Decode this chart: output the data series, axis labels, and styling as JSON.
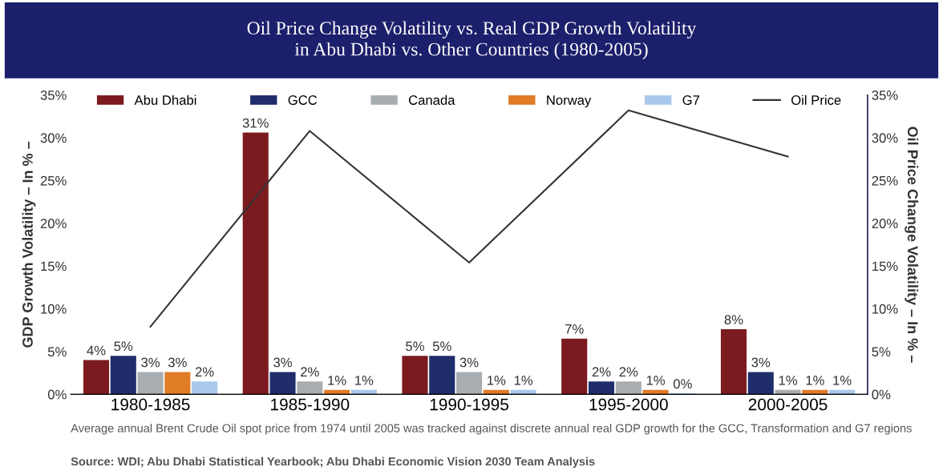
{
  "chart_data": {
    "type": "bar",
    "title": "Oil Price Change Volatility vs. Real GDP Growth Volatility\nin Abu Dhabi vs. Other Countries (1980-2005)",
    "ylabel": "GDP Growth Volatility – In % –",
    "y2label": "Oil Price Change Volatility – In % –",
    "categories": [
      "1980-1985",
      "1985-1990",
      "1990-1995",
      "1995-2000",
      "2000-2005"
    ],
    "series": [
      {
        "name": "Abu Dhabi",
        "color": "#7b1a1f",
        "values": [
          4,
          30.6,
          4.5,
          6.5,
          7.6
        ],
        "value_labels": [
          "4%",
          "31%",
          "5%",
          "7%",
          "8%"
        ]
      },
      {
        "name": "GCC",
        "color": "#1f2d6b",
        "values": [
          4.5,
          2.6,
          4.5,
          1.5,
          2.6
        ],
        "value_labels": [
          "5%",
          "3%",
          "5%",
          "2%",
          "3%"
        ]
      },
      {
        "name": "Canada",
        "color": "#a7adb1",
        "values": [
          2.6,
          1.5,
          2.6,
          1.5,
          0.5
        ],
        "value_labels": [
          "3%",
          "2%",
          "3%",
          "2%",
          "1%"
        ]
      },
      {
        "name": "Norway",
        "color": "#e07b26",
        "values": [
          2.6,
          0.5,
          0.5,
          0.5,
          0.5
        ],
        "value_labels": [
          "3%",
          "1%",
          "1%",
          "1%",
          "1%"
        ]
      },
      {
        "name": "G7",
        "color": "#a9c8ec",
        "values": [
          1.5,
          0.5,
          0.5,
          0.1,
          0.5
        ],
        "value_labels": [
          "2%",
          "1%",
          "1%",
          "0%",
          "1%"
        ]
      },
      {
        "name": "Oil Price",
        "type": "line",
        "axis": "y2",
        "color": "#333333",
        "marker": "none",
        "values": [
          7.9,
          30.8,
          15.4,
          33.2,
          27.8
        ]
      }
    ],
    "ylim": [
      0,
      35
    ],
    "yticks": [
      {
        "value": 0,
        "label": "0%"
      },
      {
        "value": 5,
        "label": "5%"
      },
      {
        "value": 10,
        "label": "10%"
      },
      {
        "value": 15,
        "label": "15%"
      },
      {
        "value": 20,
        "label": "20%"
      },
      {
        "value": 25,
        "label": "25%"
      },
      {
        "value": 30,
        "label": "30%"
      },
      {
        "value": 35,
        "label": "35%"
      }
    ],
    "y2lim": [
      0,
      35
    ],
    "y2ticks": [
      {
        "value": 0,
        "label": "0%"
      },
      {
        "value": 5,
        "label": "5%"
      },
      {
        "value": 10,
        "label": "10%"
      },
      {
        "value": 15,
        "label": "15%"
      },
      {
        "value": 20,
        "label": "20%"
      },
      {
        "value": 25,
        "label": "25%"
      },
      {
        "value": 30,
        "label": "30%"
      },
      {
        "value": 35,
        "label": "35%"
      }
    ],
    "grid": false,
    "legend": "top",
    "annotations": [
      "Average annual Brent Crude Oil spot price from 1974 until 2005 was tracked against discrete annual real GDP growth for the GCC, Transformation and G7 regions",
      "Source: WDI; Abu Dhabi Statistical Yearbook; Abu Dhabi Economic Vision 2030 Team Analysis"
    ]
  }
}
